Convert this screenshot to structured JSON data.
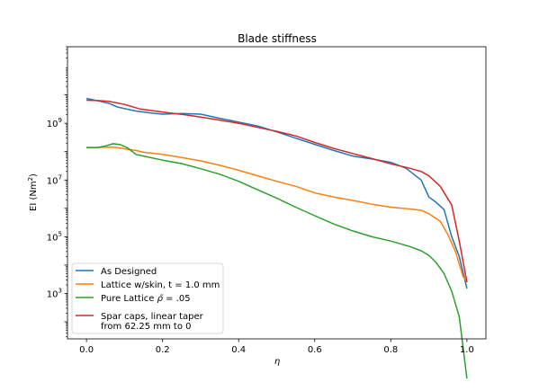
{
  "chart_data": {
    "type": "line",
    "title": "Blade stiffness",
    "xlabel": "η",
    "ylabel": {
      "prefix": "EI (Nm",
      "sup": "2",
      "suffix": ")"
    },
    "xscale": "linear",
    "yscale": "log",
    "xlim": [
      -0.05,
      1.05
    ],
    "ylim": [
      25,
      500000000000
    ],
    "x_ticks": [
      0.0,
      0.2,
      0.4,
      0.6,
      0.8,
      1.0
    ],
    "x_tick_labels": [
      "0.0",
      "0.2",
      "0.4",
      "0.6",
      "0.8",
      "1.0"
    ],
    "y_ticks": [
      {
        "value": 1000,
        "base": "10",
        "exp": "3"
      },
      {
        "value": 100000,
        "base": "10",
        "exp": "5"
      },
      {
        "value": 10000000,
        "base": "10",
        "exp": "7"
      },
      {
        "value": 1000000000,
        "base": "10",
        "exp": "9"
      }
    ],
    "grid": false,
    "legend_position": "lower-left",
    "series": [
      {
        "name": [
          "As Designed"
        ],
        "color": "#1f77b4",
        "x": [
          0.0,
          0.03,
          0.06,
          0.08,
          0.1,
          0.13,
          0.17,
          0.2,
          0.25,
          0.3,
          0.35,
          0.4,
          0.45,
          0.5,
          0.55,
          0.6,
          0.65,
          0.7,
          0.75,
          0.8,
          0.84,
          0.86,
          0.88,
          0.9,
          0.92,
          0.94,
          0.96,
          0.98,
          1.0
        ],
        "y": [
          7500000000,
          6200000000,
          5000000000,
          3800000000,
          3300000000,
          2700000000,
          2300000000,
          2100000000,
          2200000000,
          2100000000,
          1500000000,
          1100000000,
          800000000,
          500000000,
          300000000,
          180000000,
          110000000,
          70000000,
          55000000,
          42000000,
          26000000,
          16000000,
          10000000,
          2500000,
          1600000,
          900000,
          100000,
          20000,
          1500
        ]
      },
      {
        "name": [
          "Lattice w/skin, t = 1.0 mm"
        ],
        "color": "#ff7f0e",
        "x": [
          0.0,
          0.03,
          0.06,
          0.08,
          0.1,
          0.13,
          0.15,
          0.2,
          0.25,
          0.3,
          0.35,
          0.4,
          0.45,
          0.5,
          0.55,
          0.6,
          0.65,
          0.7,
          0.75,
          0.8,
          0.85,
          0.88,
          0.9,
          0.93,
          0.95,
          0.97,
          0.99,
          1.0
        ],
        "y": [
          140000000,
          140000000,
          145000000,
          140000000,
          125000000,
          110000000,
          95000000,
          80000000,
          62000000,
          47000000,
          33000000,
          22000000,
          14000000,
          9000000,
          6000000,
          3500000,
          2500000,
          1900000,
          1400000,
          1100000,
          950000,
          850000,
          650000,
          350000,
          120000,
          30000,
          4000,
          2500
        ]
      },
      {
        "name": [
          "Pure Lattice ",
          "ρ̃",
          " = .05"
        ],
        "color": "#2ca02c",
        "x": [
          0.0,
          0.03,
          0.05,
          0.07,
          0.09,
          0.11,
          0.13,
          0.15,
          0.2,
          0.25,
          0.3,
          0.35,
          0.4,
          0.45,
          0.5,
          0.55,
          0.6,
          0.65,
          0.7,
          0.75,
          0.8,
          0.85,
          0.88,
          0.9,
          0.92,
          0.94,
          0.96,
          0.98,
          1.0
        ],
        "y": [
          140000000,
          140000000,
          160000000,
          190000000,
          175000000,
          130000000,
          80000000,
          70000000,
          50000000,
          38000000,
          25000000,
          16000000,
          9000000,
          4500000,
          2300000,
          1100000,
          550000,
          280000,
          160000,
          100000,
          70000,
          45000,
          32000,
          22000,
          12000,
          5000,
          1200,
          150,
          1
        ]
      },
      {
        "name": [
          "Spar caps, linear taper",
          "from 62.25 mm to 0"
        ],
        "color": "#d62728",
        "x": [
          0.0,
          0.03,
          0.06,
          0.1,
          0.14,
          0.18,
          0.22,
          0.26,
          0.3,
          0.35,
          0.4,
          0.45,
          0.5,
          0.55,
          0.6,
          0.65,
          0.7,
          0.75,
          0.8,
          0.85,
          0.88,
          0.9,
          0.93,
          0.96,
          0.98,
          1.0
        ],
        "y": [
          6500000000,
          6300000000,
          5900000000,
          4600000000,
          3200000000,
          2700000000,
          2300000000,
          2000000000,
          1650000000,
          1300000000,
          1000000000,
          720000000,
          520000000,
          360000000,
          210000000,
          130000000,
          86000000,
          57000000,
          37000000,
          26000000,
          20000000,
          14000000,
          6000000,
          1300000,
          70000,
          2500
        ]
      }
    ]
  }
}
